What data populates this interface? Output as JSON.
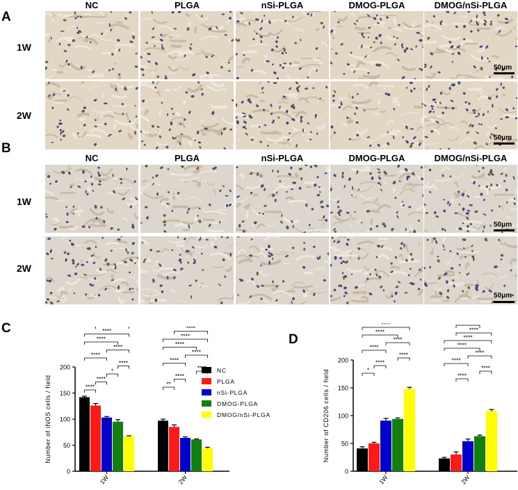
{
  "panels": {
    "A": {
      "letter": "A",
      "columns": [
        "NC",
        "PLGA",
        "nSi-PLGA",
        "DMOG-PLGA",
        "DMOG/nSi-PLGA"
      ],
      "rows": [
        "1W",
        "2W"
      ],
      "scale_bar": "50μm"
    },
    "B": {
      "letter": "B",
      "columns": [
        "NC",
        "PLGA",
        "nSi-PLGA",
        "DMOG-PLGA",
        "DMOG/nSi-PLGA"
      ],
      "rows": [
        "1W",
        "2W"
      ],
      "scale_bar": "50μm"
    }
  },
  "legend": {
    "items": [
      {
        "label": "NC",
        "color": "#000000"
      },
      {
        "label": "PLGA",
        "color": "#ff1a1a"
      },
      {
        "label": "nSi-PLGA",
        "color": "#0000cc"
      },
      {
        "label": "DMOG-PLGA",
        "color": "#118011"
      },
      {
        "label": "DMOG/nSi-PLGA",
        "color": "#ffff00"
      }
    ]
  },
  "chart_data": [
    {
      "panel": "C",
      "type": "bar",
      "ylabel": "Number of iNOS cells / field",
      "categories": [
        "1W",
        "2W"
      ],
      "ylim": [
        0,
        200
      ],
      "yticks": [
        0,
        50,
        100,
        150,
        200
      ],
      "series": [
        {
          "name": "NC",
          "color": "#000000",
          "values": [
            142,
            97
          ],
          "errors": [
            2,
            3
          ]
        },
        {
          "name": "PLGA",
          "color": "#ff1a1a",
          "values": [
            126,
            85
          ],
          "errors": [
            4,
            4
          ]
        },
        {
          "name": "nSi-PLGA",
          "color": "#0000cc",
          "values": [
            103,
            64
          ],
          "errors": [
            2,
            2
          ]
        },
        {
          "name": "DMOG-PLGA",
          "color": "#118011",
          "values": [
            95,
            61
          ],
          "errors": [
            4,
            1
          ]
        },
        {
          "name": "DMOG/nSi-PLGA",
          "color": "#ffff00",
          "values": [
            67,
            44
          ],
          "errors": [
            1,
            2
          ]
        }
      ],
      "significance": [
        {
          "group": 0,
          "from": 0,
          "to": 1,
          "label": "****"
        },
        {
          "group": 0,
          "from": 1,
          "to": 2,
          "label": "****"
        },
        {
          "group": 0,
          "from": 2,
          "to": 3,
          "label": "*"
        },
        {
          "group": 0,
          "from": 3,
          "to": 4,
          "label": "****"
        },
        {
          "group": 0,
          "from": 0,
          "to": 2,
          "label": "****"
        },
        {
          "group": 0,
          "from": 2,
          "to": 4,
          "label": "****"
        },
        {
          "group": 0,
          "from": 0,
          "to": 3,
          "label": "****"
        },
        {
          "group": 0,
          "from": 0,
          "to": 4,
          "label": "****"
        },
        {
          "group": 0,
          "from": 1,
          "to": 4,
          "label": "****"
        },
        {
          "group": 0,
          "from": 1,
          "to": 3,
          "label": "****"
        },
        {
          "group": 1,
          "from": 0,
          "to": 1,
          "label": "**"
        },
        {
          "group": 1,
          "from": 1,
          "to": 2,
          "label": "****"
        },
        {
          "group": 1,
          "from": 3,
          "to": 4,
          "label": "****"
        },
        {
          "group": 1,
          "from": 0,
          "to": 2,
          "label": "****"
        },
        {
          "group": 1,
          "from": 2,
          "to": 4,
          "label": "****"
        },
        {
          "group": 1,
          "from": 0,
          "to": 3,
          "label": "****"
        },
        {
          "group": 1,
          "from": 0,
          "to": 4,
          "label": "****"
        },
        {
          "group": 1,
          "from": 1,
          "to": 4,
          "label": "****"
        },
        {
          "group": 1,
          "from": 1,
          "to": 3,
          "label": "****"
        }
      ]
    },
    {
      "panel": "D",
      "type": "bar",
      "ylabel": "Number of CD206 cells / field",
      "categories": [
        "1W",
        "2W"
      ],
      "ylim": [
        0,
        200
      ],
      "yticks": [
        0,
        50,
        100,
        150,
        200
      ],
      "series": [
        {
          "name": "NC",
          "color": "#000000",
          "values": [
            41,
            23
          ],
          "errors": [
            3,
            2
          ]
        },
        {
          "name": "PLGA",
          "color": "#ff1a1a",
          "values": [
            50,
            30
          ],
          "errors": [
            2,
            5
          ]
        },
        {
          "name": "nSi-PLGA",
          "color": "#0000cc",
          "values": [
            91,
            54
          ],
          "errors": [
            4,
            4
          ]
        },
        {
          "name": "DMOG-PLGA",
          "color": "#118011",
          "values": [
            94,
            63
          ],
          "errors": [
            2,
            2
          ]
        },
        {
          "name": "DMOG/nSi-PLGA",
          "color": "#ffff00",
          "values": [
            148,
            108
          ],
          "errors": [
            3,
            3
          ]
        }
      ],
      "significance": [
        {
          "group": 0,
          "from": 0,
          "to": 1,
          "label": "*"
        },
        {
          "group": 0,
          "from": 1,
          "to": 2,
          "label": "****"
        },
        {
          "group": 0,
          "from": 3,
          "to": 4,
          "label": "****"
        },
        {
          "group": 0,
          "from": 0,
          "to": 2,
          "label": "****"
        },
        {
          "group": 0,
          "from": 2,
          "to": 4,
          "label": "****"
        },
        {
          "group": 0,
          "from": 0,
          "to": 3,
          "label": "****"
        },
        {
          "group": 0,
          "from": 0,
          "to": 4,
          "label": "****"
        },
        {
          "group": 0,
          "from": 1,
          "to": 4,
          "label": "****"
        },
        {
          "group": 0,
          "from": 1,
          "to": 3,
          "label": "****"
        },
        {
          "group": 1,
          "from": 1,
          "to": 2,
          "label": "****"
        },
        {
          "group": 1,
          "from": 3,
          "to": 4,
          "label": "****"
        },
        {
          "group": 1,
          "from": 0,
          "to": 2,
          "label": "****"
        },
        {
          "group": 1,
          "from": 2,
          "to": 4,
          "label": "****"
        },
        {
          "group": 1,
          "from": 0,
          "to": 3,
          "label": "****"
        },
        {
          "group": 1,
          "from": 0,
          "to": 4,
          "label": "****"
        },
        {
          "group": 1,
          "from": 1,
          "to": 4,
          "label": "****"
        },
        {
          "group": 1,
          "from": 1,
          "to": 3,
          "label": "****"
        }
      ]
    }
  ]
}
